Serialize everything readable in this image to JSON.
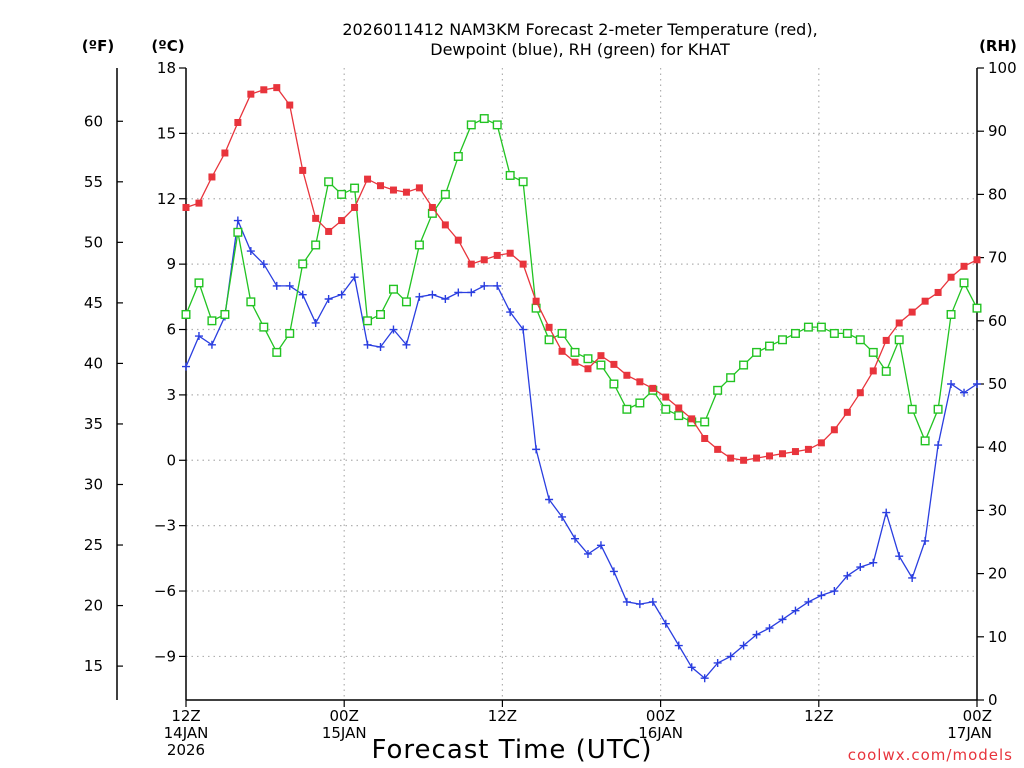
{
  "chart_data": {
    "type": "line",
    "title_line1": "2026011412 NAM3KM Forecast 2-meter Temperature (red),",
    "title_line2": "Dewpoint (blue), RH (green) for KHAT",
    "xlabel": "Forecast Time (UTC)",
    "credit": "coolwx.com/models",
    "units": {
      "fahrenheit": "(ºF)",
      "celsius": "(ºC)",
      "rh": "(RH)"
    },
    "forecast_hours_range": [
      0,
      60
    ],
    "celsius_axis": {
      "ylim": [
        -11,
        18
      ],
      "ticks": [
        "18",
        "15",
        "12",
        "9",
        "6",
        "3",
        "0",
        "−3",
        "−6",
        "−9"
      ],
      "tick_values": [
        18,
        15,
        12,
        9,
        6,
        3,
        0,
        -3,
        -6,
        -9
      ]
    },
    "fahrenheit_axis": {
      "ticks": [
        "60",
        "55",
        "50",
        "45",
        "40",
        "35",
        "30",
        "25",
        "20",
        "15"
      ],
      "tick_values": [
        60,
        55,
        50,
        45,
        40,
        35,
        30,
        25,
        20,
        15
      ]
    },
    "rh_axis": {
      "ylim": [
        0,
        100
      ],
      "ticks": [
        "100",
        "90",
        "80",
        "70",
        "60",
        "50",
        "40",
        "30",
        "20",
        "10",
        "0"
      ],
      "tick_values": [
        100,
        90,
        80,
        70,
        60,
        50,
        40,
        30,
        20,
        10,
        0
      ]
    },
    "x_ticks": [
      {
        "hour": 0,
        "line1": "12Z",
        "line2": "14JAN",
        "line3": "2026"
      },
      {
        "hour": 12,
        "line1": "00Z",
        "line2": "15JAN",
        "line3": ""
      },
      {
        "hour": 24,
        "line1": "12Z",
        "line2": "",
        "line3": ""
      },
      {
        "hour": 36,
        "line1": "00Z",
        "line2": "16JAN",
        "line3": ""
      },
      {
        "hour": 48,
        "line1": "12Z",
        "line2": "",
        "line3": ""
      },
      {
        "hour": 60,
        "line1": "00Z",
        "line2": "17JAN",
        "line3": ""
      }
    ],
    "colors": {
      "temperature": "#e8343c",
      "dewpoint": "#2a3ee0",
      "rh": "#22c322",
      "grid": "#b0b0b0"
    },
    "series": [
      {
        "name": "Temperature",
        "unit": "C",
        "values": [
          11.6,
          11.8,
          13.0,
          14.1,
          15.5,
          16.8,
          17.0,
          17.1,
          16.3,
          13.3,
          11.1,
          10.5,
          11.0,
          11.6,
          12.9,
          12.6,
          12.4,
          12.3,
          12.5,
          11.6,
          10.8,
          10.1,
          9.0,
          9.2,
          9.4,
          9.5,
          9.0,
          7.3,
          6.1,
          5.0,
          4.5,
          4.2,
          4.8,
          4.4,
          3.9,
          3.6,
          3.3,
          2.9,
          2.4,
          1.9,
          1.0,
          0.5,
          0.1,
          0.0,
          0.1,
          0.2,
          0.3,
          0.4,
          0.5,
          0.8,
          1.4,
          2.2,
          3.1,
          4.1,
          5.5,
          6.3,
          6.8,
          7.3,
          7.7,
          8.4,
          8.9,
          9.2
        ]
      },
      {
        "name": "Dewpoint",
        "unit": "C",
        "values": [
          4.3,
          5.7,
          5.3,
          6.6,
          11.0,
          9.6,
          9.0,
          8.0,
          8.0,
          7.6,
          6.3,
          7.4,
          7.6,
          8.4,
          5.3,
          5.2,
          6.0,
          5.3,
          7.5,
          7.6,
          7.4,
          7.7,
          7.7,
          8.0,
          8.0,
          6.8,
          6.0,
          0.5,
          -1.8,
          -2.6,
          -3.6,
          -4.3,
          -3.9,
          -5.1,
          -6.5,
          -6.6,
          -6.5,
          -7.5,
          -8.5,
          -9.5,
          -10.0,
          -9.3,
          -9.0,
          -8.5,
          -8.0,
          -7.7,
          -7.3,
          -6.9,
          -6.5,
          -6.2,
          -6.0,
          -5.3,
          -4.9,
          -4.7,
          -2.4,
          -4.4,
          -5.4,
          -3.7,
          0.7,
          3.5,
          3.1,
          3.5
        ]
      },
      {
        "name": "RH",
        "unit": "%",
        "values": [
          61,
          66,
          60,
          61,
          74,
          63,
          59,
          55,
          58,
          69,
          72,
          82,
          80,
          81,
          60,
          61,
          65,
          63,
          72,
          77,
          80,
          86,
          91,
          92,
          91,
          83,
          82,
          62,
          57,
          58,
          55,
          54,
          53,
          50,
          46,
          47,
          49,
          46,
          45,
          44,
          44,
          49,
          51,
          53,
          55,
          56,
          57,
          58,
          59,
          59,
          58,
          58,
          57,
          55,
          52,
          57,
          46,
          41,
          46,
          61,
          66,
          62
        ]
      }
    ]
  }
}
